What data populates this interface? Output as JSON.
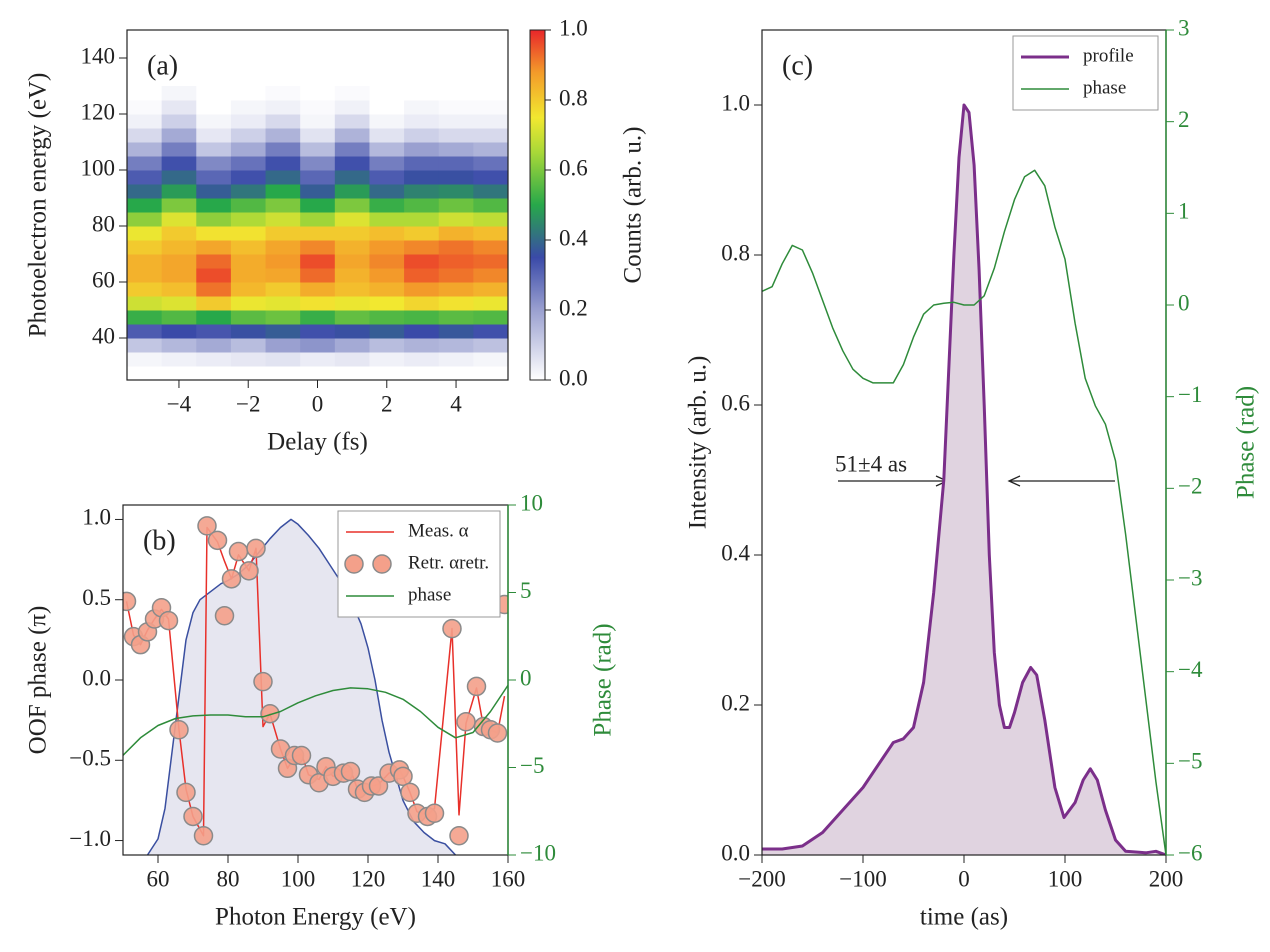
{
  "chart_data": [
    {
      "type": "heatmap",
      "label": "(a)",
      "xlabel": "Delay (fs)",
      "ylabel": "Photoelectron energy (eV)",
      "colorbar_label": "Counts (arb. u.)",
      "xlim": [
        -5.5,
        5.5
      ],
      "ylim": [
        25,
        150
      ],
      "xticks": [
        {
          "value": -4,
          "label": "−4"
        },
        {
          "value": -2,
          "label": "−2"
        },
        0,
        2,
        4
      ],
      "yticks": [
        40,
        60,
        80,
        100,
        120,
        140
      ],
      "zlim": [
        0,
        1
      ],
      "zticks": [
        {
          "value": 0,
          "label": "0.0"
        },
        {
          "value": 0.2,
          "label": "0.2"
        },
        {
          "value": 0.4,
          "label": "0.4"
        },
        {
          "value": 0.6,
          "label": "0.6"
        },
        {
          "value": 0.8,
          "label": "0.8"
        },
        {
          "value": 1,
          "label": "1.0"
        }
      ],
      "colorscale": [
        [
          0,
          "#ffffff"
        ],
        [
          0.2,
          "#9aa0d0"
        ],
        [
          0.35,
          "#3a4aa8"
        ],
        [
          0.5,
          "#27a84a"
        ],
        [
          0.65,
          "#a8d838"
        ],
        [
          0.75,
          "#f2e830"
        ],
        [
          0.88,
          "#f39a2a"
        ],
        [
          1,
          "#e8262a"
        ]
      ],
      "x_edges": [
        -5.5,
        -4.5,
        -3.5,
        -2.5,
        -1.5,
        -0.5,
        0.5,
        1.5,
        2.5,
        3.5,
        4.5,
        5.5
      ],
      "y_edges": [
        30,
        35,
        40,
        45,
        50,
        55,
        60,
        65,
        70,
        75,
        80,
        85,
        90,
        95,
        100,
        105,
        110,
        115,
        120,
        125,
        130
      ],
      "z": [
        [
          0.02,
          0.03,
          0.04,
          0.05,
          0.06,
          0.04,
          0.05,
          0.03,
          0.04,
          0.03,
          0.02
        ],
        [
          0.12,
          0.15,
          0.18,
          0.14,
          0.2,
          0.22,
          0.18,
          0.14,
          0.16,
          0.15,
          0.13
        ],
        [
          0.32,
          0.35,
          0.33,
          0.36,
          0.38,
          0.34,
          0.36,
          0.38,
          0.35,
          0.37,
          0.34
        ],
        [
          0.52,
          0.55,
          0.5,
          0.56,
          0.58,
          0.52,
          0.57,
          0.55,
          0.54,
          0.56,
          0.55
        ],
        [
          0.7,
          0.72,
          0.8,
          0.74,
          0.73,
          0.76,
          0.74,
          0.75,
          0.78,
          0.76,
          0.74
        ],
        [
          0.8,
          0.82,
          0.92,
          0.83,
          0.8,
          0.85,
          0.82,
          0.84,
          0.88,
          0.86,
          0.84
        ],
        [
          0.84,
          0.86,
          0.96,
          0.85,
          0.86,
          0.93,
          0.84,
          0.88,
          0.94,
          0.92,
          0.9
        ],
        [
          0.84,
          0.86,
          0.93,
          0.85,
          0.88,
          0.96,
          0.86,
          0.9,
          0.96,
          0.94,
          0.93
        ],
        [
          0.8,
          0.83,
          0.86,
          0.82,
          0.86,
          0.9,
          0.84,
          0.88,
          0.9,
          0.92,
          0.9
        ],
        [
          0.74,
          0.8,
          0.76,
          0.76,
          0.8,
          0.8,
          0.8,
          0.82,
          0.8,
          0.84,
          0.82
        ],
        [
          0.62,
          0.72,
          0.62,
          0.66,
          0.7,
          0.64,
          0.72,
          0.66,
          0.66,
          0.7,
          0.68
        ],
        [
          0.5,
          0.6,
          0.5,
          0.55,
          0.6,
          0.5,
          0.6,
          0.52,
          0.55,
          0.58,
          0.55
        ],
        [
          0.4,
          0.48,
          0.38,
          0.42,
          0.5,
          0.38,
          0.48,
          0.4,
          0.44,
          0.45,
          0.42
        ],
        [
          0.32,
          0.4,
          0.3,
          0.34,
          0.4,
          0.3,
          0.4,
          0.32,
          0.36,
          0.36,
          0.34
        ],
        [
          0.26,
          0.34,
          0.24,
          0.28,
          0.34,
          0.24,
          0.34,
          0.26,
          0.3,
          0.3,
          0.28
        ],
        [
          0.16,
          0.26,
          0.12,
          0.18,
          0.26,
          0.14,
          0.26,
          0.15,
          0.2,
          0.18,
          0.16
        ],
        [
          0.08,
          0.18,
          0.05,
          0.1,
          0.16,
          0.06,
          0.16,
          0.06,
          0.1,
          0.08,
          0.08
        ],
        [
          0.03,
          0.1,
          0.02,
          0.04,
          0.08,
          0.02,
          0.08,
          0.02,
          0.04,
          0.03,
          0.03
        ],
        [
          0.01,
          0.05,
          0.0,
          0.02,
          0.03,
          0.01,
          0.03,
          0.0,
          0.02,
          0.01,
          0.01
        ],
        [
          0,
          0.02,
          0,
          0,
          0.01,
          0,
          0.01,
          0,
          0,
          0,
          0
        ]
      ]
    },
    {
      "type": "line",
      "label": "(b)",
      "xlabel": "Photon Energy (eV)",
      "ylabel": "OOF phase (π)",
      "y2label": "Phase (rad)",
      "y2color": "#2e8b3a",
      "xlim": [
        50,
        160
      ],
      "ylim": [
        -1.09,
        1.09
      ],
      "y2lim": [
        -10,
        10
      ],
      "xticks": [
        60,
        80,
        100,
        120,
        140,
        160
      ],
      "yticks": [
        {
          "value": 1,
          "label": "1.0"
        },
        0.5,
        {
          "value": 0,
          "label": "0.0"
        },
        {
          "value": -0.5,
          "label": "−0.5"
        },
        {
          "value": -1,
          "label": "−1.0"
        }
      ],
      "y2ticks": [
        10,
        5,
        0,
        {
          "value": -5,
          "label": "−5"
        },
        {
          "value": -10,
          "label": "−10"
        }
      ],
      "legend": "upper right",
      "series": [
        {
          "color": "#3a4fa0",
          "fill": "#e6e6f0",
          "x": [
            57,
            60,
            62,
            64,
            66,
            68,
            70,
            72,
            75,
            78,
            80,
            83,
            86,
            89,
            92,
            95,
            98,
            100,
            103,
            106,
            109,
            112,
            115,
            118,
            120,
            122,
            124,
            126,
            128,
            130,
            133,
            136,
            139,
            142,
            145
          ],
          "values": [
            -1.09,
            -0.99,
            -0.8,
            -0.45,
            -0.1,
            0.25,
            0.42,
            0.5,
            0.55,
            0.6,
            0.62,
            0.66,
            0.72,
            0.8,
            0.88,
            0.95,
            1.0,
            0.97,
            0.9,
            0.82,
            0.72,
            0.62,
            0.5,
            0.35,
            0.2,
            0.0,
            -0.25,
            -0.45,
            -0.6,
            -0.75,
            -0.88,
            -0.95,
            -1.0,
            -1.02,
            -1.09
          ]
        },
        {
          "name": "Meas. α",
          "color": "#e8302a",
          "x": [
            51,
            53,
            55,
            57,
            59,
            61,
            63,
            66,
            68,
            70,
            73,
            74,
            77,
            79,
            81,
            83,
            86,
            88,
            90,
            92,
            95,
            97,
            99,
            101,
            103,
            106,
            108,
            110,
            113,
            115,
            117,
            119,
            121,
            123,
            126,
            129,
            130,
            132,
            134,
            137,
            139,
            144,
            146,
            148,
            151,
            153,
            155,
            157,
            159
          ],
          "values": [
            0.49,
            0.28,
            0.22,
            0.31,
            0.38,
            0.44,
            0.38,
            -0.31,
            -0.68,
            -0.85,
            -0.97,
            0.95,
            0.86,
            0.74,
            0.63,
            0.78,
            0.68,
            0.82,
            -0.29,
            -0.21,
            -0.43,
            -0.55,
            -0.48,
            -0.46,
            -0.59,
            -0.62,
            -0.54,
            -0.6,
            -0.58,
            -0.56,
            -0.68,
            -0.69,
            -0.66,
            -0.65,
            -0.58,
            -0.56,
            -0.6,
            -0.7,
            -0.82,
            -0.84,
            -0.8,
            0.32,
            -0.84,
            -0.27,
            -0.05,
            -0.29,
            -0.31,
            -0.33,
            -0.1
          ]
        },
        {
          "name": "Retr. αretr.",
          "type": "scatter",
          "color": "#f4a08a",
          "x": [
            51,
            53,
            55,
            57,
            59,
            61,
            63,
            66,
            68,
            70,
            73,
            74,
            77,
            79,
            81,
            83,
            86,
            88,
            90,
            92,
            95,
            97,
            99,
            101,
            103,
            106,
            108,
            110,
            113,
            115,
            117,
            119,
            121,
            123,
            126,
            129,
            130,
            132,
            134,
            137,
            139,
            144,
            146,
            148,
            151,
            153,
            155,
            157,
            159
          ],
          "values": [
            0.49,
            0.27,
            0.22,
            0.3,
            0.38,
            0.45,
            0.37,
            -0.31,
            -0.7,
            -0.85,
            -0.97,
            0.96,
            0.87,
            0.4,
            0.63,
            0.8,
            0.68,
            0.82,
            -0.01,
            -0.21,
            -0.43,
            -0.55,
            -0.47,
            -0.47,
            -0.59,
            -0.64,
            -0.54,
            -0.6,
            -0.58,
            -0.57,
            -0.68,
            -0.7,
            -0.66,
            -0.66,
            -0.58,
            -0.56,
            -0.6,
            -0.7,
            -0.83,
            -0.85,
            -0.83,
            0.32,
            -0.97,
            -0.26,
            -0.04,
            -0.29,
            -0.31,
            -0.33,
            0.47
          ]
        },
        {
          "name": "phase",
          "color": "#2e8b3a",
          "axis": "y2",
          "x": [
            50,
            55,
            60,
            65,
            70,
            75,
            80,
            85,
            90,
            95,
            100,
            105,
            110,
            115,
            120,
            125,
            130,
            135,
            140,
            145,
            150,
            155,
            160
          ],
          "values": [
            -4.3,
            -3.3,
            -2.6,
            -2.2,
            -2.05,
            -2.0,
            -2.0,
            -2.1,
            -2.1,
            -1.8,
            -1.3,
            -0.9,
            -0.6,
            -0.45,
            -0.5,
            -0.7,
            -1.1,
            -1.8,
            -2.7,
            -3.3,
            -3.0,
            -1.8,
            -0.3
          ]
        }
      ]
    },
    {
      "type": "line",
      "label": "(c)",
      "xlabel": "time (as)",
      "ylabel": "Intensity (arb. u.)",
      "y2label": "Phase (rad)",
      "y2color": "#2e8b3a",
      "annotation": "51±4 as",
      "xlim": [
        -200,
        200
      ],
      "ylim": [
        0,
        1.1
      ],
      "y2lim": [
        -6,
        3
      ],
      "xticks": [
        {
          "value": -200,
          "label": "−200"
        },
        {
          "value": -100,
          "label": "−100"
        },
        0,
        100,
        200
      ],
      "yticks": [
        {
          "value": 0,
          "label": "0.0"
        },
        0.2,
        0.4,
        0.6,
        0.8,
        {
          "value": 1,
          "label": "1.0"
        }
      ],
      "y2ticks": [
        3,
        2,
        1,
        0,
        {
          "value": -1,
          "label": "−1"
        },
        {
          "value": -2,
          "label": "−2"
        },
        {
          "value": -3,
          "label": "−3"
        },
        {
          "value": -4,
          "label": "−4"
        },
        {
          "value": -5,
          "label": "−5"
        },
        {
          "value": -6,
          "label": "−6"
        }
      ],
      "legend": "upper right",
      "series": [
        {
          "name": "profile",
          "color": "#7b2f8a",
          "fill": "#e0d3e0",
          "x": [
            -200,
            -180,
            -160,
            -140,
            -120,
            -100,
            -80,
            -70,
            -60,
            -50,
            -40,
            -30,
            -20,
            -10,
            -5,
            0,
            5,
            10,
            15,
            20,
            25,
            30,
            35,
            40,
            45,
            50,
            58,
            66,
            72,
            80,
            90,
            99,
            110,
            118,
            125,
            132,
            140,
            150,
            160,
            180,
            190,
            200
          ],
          "values": [
            0.008,
            0.008,
            0.012,
            0.03,
            0.06,
            0.09,
            0.13,
            0.15,
            0.155,
            0.17,
            0.23,
            0.35,
            0.5,
            0.8,
            0.93,
            1.0,
            0.99,
            0.92,
            0.78,
            0.6,
            0.4,
            0.27,
            0.2,
            0.17,
            0.17,
            0.19,
            0.23,
            0.25,
            0.24,
            0.18,
            0.09,
            0.05,
            0.07,
            0.1,
            0.115,
            0.1,
            0.06,
            0.02,
            0.005,
            0.003,
            0.005,
            0.0
          ]
        },
        {
          "name": "phase",
          "color": "#2e8b3a",
          "axis": "y2",
          "x": [
            -200,
            -190,
            -180,
            -170,
            -160,
            -150,
            -140,
            -130,
            -120,
            -110,
            -100,
            -90,
            -80,
            -70,
            -60,
            -50,
            -40,
            -30,
            -20,
            -10,
            0,
            10,
            20,
            30,
            40,
            50,
            60,
            70,
            80,
            90,
            100,
            110,
            120,
            130,
            140,
            150,
            160,
            170,
            180,
            190,
            200
          ],
          "values": [
            0.15,
            0.2,
            0.45,
            0.65,
            0.6,
            0.35,
            0.05,
            -0.25,
            -0.5,
            -0.7,
            -0.8,
            -0.85,
            -0.85,
            -0.85,
            -0.65,
            -0.35,
            -0.1,
            0.0,
            0.02,
            0.03,
            0.0,
            0.0,
            0.1,
            0.4,
            0.8,
            1.15,
            1.4,
            1.47,
            1.3,
            0.85,
            0.5,
            -0.2,
            -0.8,
            -1.1,
            -1.3,
            -1.7,
            -2.5,
            -3.4,
            -4.3,
            -5.2,
            -6.0
          ]
        }
      ]
    }
  ]
}
